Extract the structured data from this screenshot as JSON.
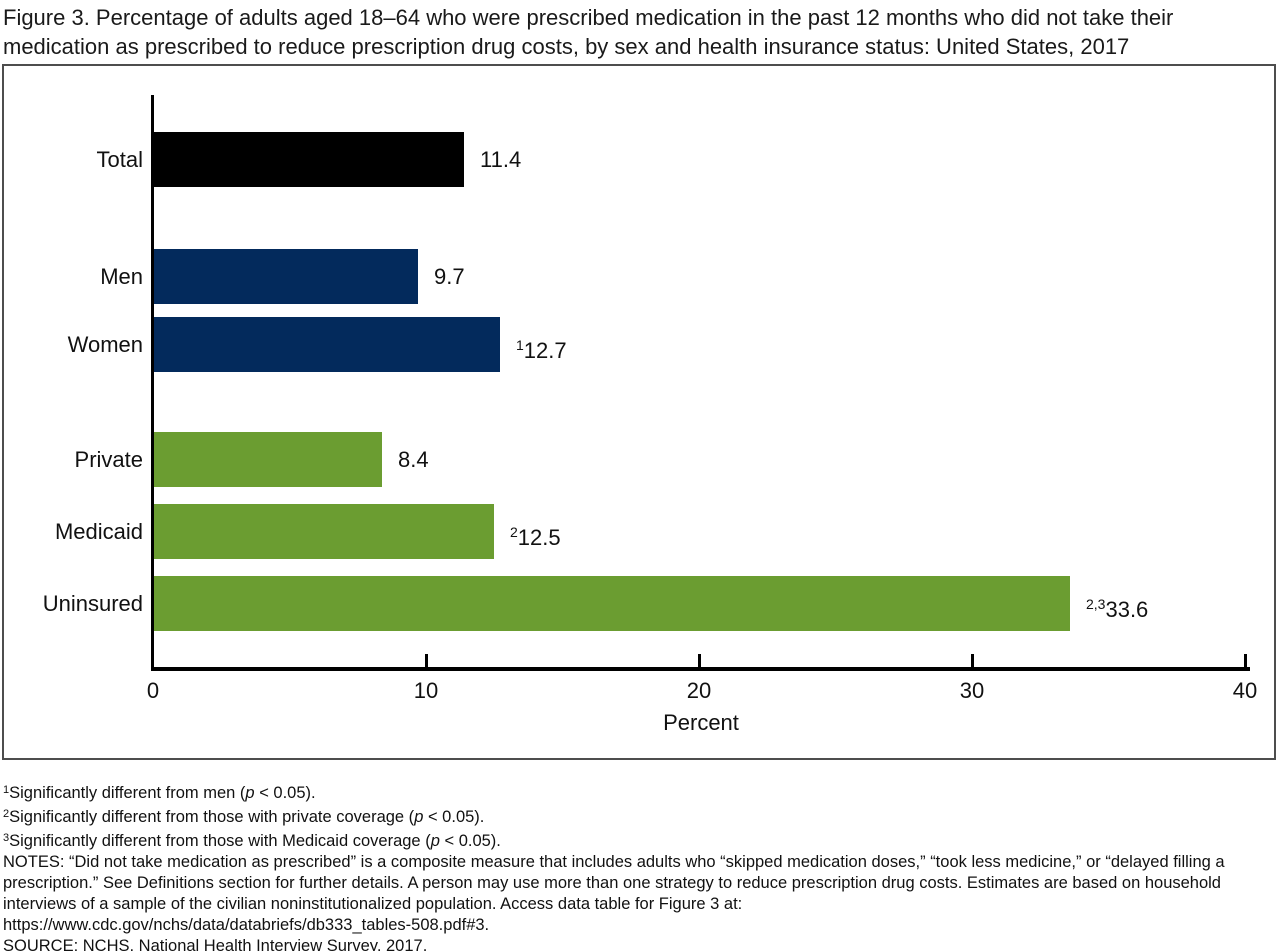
{
  "chart_data": {
    "type": "bar",
    "orientation": "horizontal",
    "title": "Figure 3. Percentage of adults aged 18–64 who were prescribed medication in the past 12 months who did not take their medication as prescribed to reduce prescription drug costs, by sex and health insurance status: United States, 2017",
    "xlabel": "Percent",
    "xlim": [
      0,
      40
    ],
    "xticks": [
      0,
      10,
      20,
      30,
      40
    ],
    "grid": false,
    "legend": "none",
    "categories": [
      "Total",
      "Men",
      "Women",
      "Private",
      "Medicaid",
      "Uninsured"
    ],
    "values": [
      11.4,
      9.7,
      12.7,
      8.4,
      12.5,
      33.6
    ],
    "bars": [
      {
        "label": "Total",
        "value": 11.4,
        "value_text": "11.4",
        "sup": "",
        "group": "total",
        "color": "#000000"
      },
      {
        "label": "Men",
        "value": 9.7,
        "value_text": "9.7",
        "sup": "",
        "group": "sex",
        "color": "#032a5c"
      },
      {
        "label": "Women",
        "value": 12.7,
        "value_text": "12.7",
        "sup": "1",
        "group": "sex",
        "color": "#032a5c"
      },
      {
        "label": "Private",
        "value": 8.4,
        "value_text": "8.4",
        "sup": "",
        "group": "insurance",
        "color": "#6b9d31"
      },
      {
        "label": "Medicaid",
        "value": 12.5,
        "value_text": "12.5",
        "sup": "2",
        "group": "insurance",
        "color": "#6b9d31"
      },
      {
        "label": "Uninsured",
        "value": 33.6,
        "value_text": "33.6",
        "sup": "2,3",
        "group": "insurance",
        "color": "#6b9d31"
      }
    ]
  },
  "colors": {
    "total_bar": "#000000",
    "sex_bar": "#032a5c",
    "insurance_bar": "#6b9d31",
    "axis": "#000000",
    "frame": "#4d4d4d"
  },
  "footnotes": [
    {
      "sup": "1",
      "before": "Significantly different from men (",
      "italic": "p",
      "after": " < 0.05)."
    },
    {
      "sup": "2",
      "before": "Significantly different from those with private coverage (",
      "italic": "p",
      "after": " < 0.05)."
    },
    {
      "sup": "3",
      "before": "Significantly different from those with Medicaid coverage (",
      "italic": "p",
      "after": " < 0.05)."
    }
  ],
  "notes": {
    "label": "NOTES: ",
    "text": "“Did not take medication as prescribed” is a composite measure that includes adults who “skipped medication doses,” “took less medicine,” or “delayed filling a prescription.” See Definitions section for further details. A person may use more than one strategy to reduce prescription drug costs. Estimates are based on household interviews of a sample of the civilian noninstitutionalized population. Access data table for Figure 3 at:",
    "url": "https://www.cdc.gov/nchs/data/databriefs/db333_tables-508.pdf#3.",
    "source": "SOURCE: NCHS, National Health Interview Survey, 2017."
  }
}
